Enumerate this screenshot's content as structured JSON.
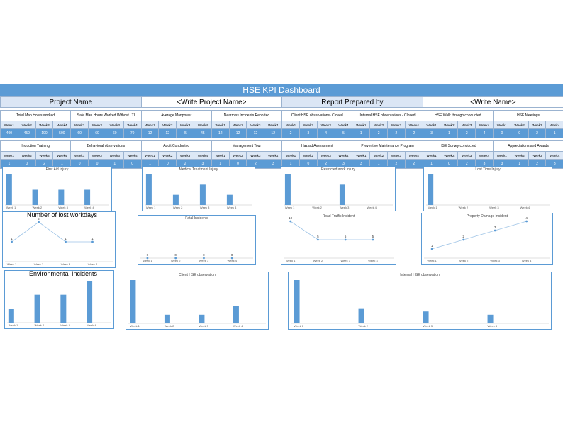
{
  "dashboard": {
    "title": "HSE KPI Dashboard"
  },
  "header": {
    "project_label": "Project Name",
    "project_value": "<Write Project Name>",
    "report_label": "Report Prepared by",
    "report_value": "<Write Name>"
  },
  "weeks": [
    "Week1",
    "Week2",
    "Week3",
    "Week4"
  ],
  "metrics_row1": [
    {
      "label": "Total Man Hours worked",
      "values": [
        "400",
        "450",
        "190",
        "500"
      ]
    },
    {
      "label": "Safe Man Hours Worked Without LTI",
      "values": [
        "60",
        "60",
        "60",
        "70"
      ]
    },
    {
      "label": "Average Manpower",
      "values": [
        "12",
        "12",
        "45",
        "45"
      ]
    },
    {
      "label": "Nearmiss Incidents Reported",
      "values": [
        "12",
        "12",
        "12",
        "12"
      ]
    },
    {
      "label": "Client HSE observations- Closed",
      "values": [
        "2",
        "3",
        "4",
        "5"
      ]
    },
    {
      "label": "Internal HSE observations - Closed",
      "values": [
        "1",
        "2",
        "2",
        "2"
      ]
    },
    {
      "label": "HSE Walk through conducted",
      "values": [
        "3",
        "1",
        "2",
        "4"
      ]
    },
    {
      "label": "HSE Meetings",
      "values": [
        "0",
        "0",
        "2",
        "1"
      ]
    }
  ],
  "metrics_row2": [
    {
      "label": "Induction Training",
      "values": [
        "1",
        "0",
        "2",
        "1"
      ]
    },
    {
      "label": "Behavioral observations",
      "values": [
        "0",
        "0",
        "1",
        "0"
      ]
    },
    {
      "label": "Audit Conducted",
      "values": [
        "1",
        "0",
        "2",
        "3"
      ]
    },
    {
      "label": "Management Tour",
      "values": [
        "1",
        "0",
        "2",
        "3"
      ]
    },
    {
      "label": "Hazard Assessment",
      "values": [
        "1",
        "0",
        "2",
        "3"
      ]
    },
    {
      "label": "Preventive Maintenance Program",
      "values": [
        "3",
        "1",
        "2",
        "2"
      ]
    },
    {
      "label": "HSE Survey conducted",
      "values": [
        "1",
        "0",
        "2",
        "3"
      ]
    },
    {
      "label": "Appreciations and Awards",
      "values": [
        "3",
        "1",
        "2",
        "3"
      ]
    }
  ],
  "chart_data": [
    {
      "type": "bar",
      "title": "First Aid Injury",
      "categories": [
        "Week 1",
        "Week 2",
        "Week 3",
        "Week 4"
      ],
      "values": [
        2,
        1,
        1,
        1
      ],
      "ylim": [
        0,
        2
      ]
    },
    {
      "type": "bar",
      "title": "Medical Treatment Injury",
      "categories": [
        "Week 1",
        "Week 2",
        "Week 3",
        "Week 4"
      ],
      "values": [
        3,
        1,
        2,
        1
      ],
      "ylim": [
        0,
        3
      ]
    },
    {
      "type": "bar",
      "title": "Restricted work Injury",
      "categories": [
        "Week 1",
        "Week 2",
        "Week 3",
        "Week 4"
      ],
      "values": [
        3,
        0,
        2,
        0
      ],
      "ylim": [
        0,
        3
      ]
    },
    {
      "type": "bar",
      "title": "Lost Time Injury",
      "categories": [
        "Week 1",
        "Week 2",
        "Week 3",
        "Week 4"
      ],
      "values": [
        1,
        0,
        0,
        0
      ],
      "ylim": [
        0,
        1
      ]
    },
    {
      "type": "line",
      "title": "Number of lost workdays",
      "categories": [
        "Week 1",
        "Week 2",
        "Week 3",
        "Week 4"
      ],
      "values": [
        1,
        2,
        1,
        1
      ],
      "ylim": [
        0,
        2
      ]
    },
    {
      "type": "line",
      "title": "Fatal Incidents",
      "categories": [
        "Week 1",
        "Week 2",
        "Week 3",
        "Week 4"
      ],
      "values": [
        0,
        0,
        0,
        0
      ],
      "ylim": [
        0,
        2
      ]
    },
    {
      "type": "line",
      "title": "Road Traffic Incident",
      "categories": [
        "Week 1",
        "Week 2",
        "Week 3",
        "Week 4"
      ],
      "values": [
        10,
        5,
        5,
        5
      ],
      "ylim": [
        0,
        10
      ]
    },
    {
      "type": "line",
      "title": "Property Damage Incident",
      "categories": [
        "Week 1",
        "Week 2",
        "Week 3",
        "Week 4"
      ],
      "values": [
        1,
        2,
        3,
        4
      ],
      "ylim": [
        0,
        4
      ]
    },
    {
      "type": "bar",
      "title": "Environmental Incidents",
      "categories": [
        "Week 1",
        "Week 2",
        "Week 3",
        "Week 4"
      ],
      "values": [
        1,
        2,
        2,
        3
      ],
      "ylim": [
        0,
        3
      ]
    },
    {
      "type": "bar",
      "title": "Client HSE observation",
      "categories": [
        "Week 1",
        "Week 2",
        "Week 3",
        "Week 4"
      ],
      "values": [
        5,
        1,
        1,
        2
      ],
      "ylim": [
        0,
        5
      ]
    },
    {
      "type": "bar",
      "title": "Internal HSE observation",
      "categories": [
        "Week 1",
        "Week 2",
        "Week 3",
        "Week 4"
      ],
      "values": [
        4,
        1.4,
        1.1,
        0.8
      ],
      "ylim": [
        0,
        4
      ]
    }
  ]
}
